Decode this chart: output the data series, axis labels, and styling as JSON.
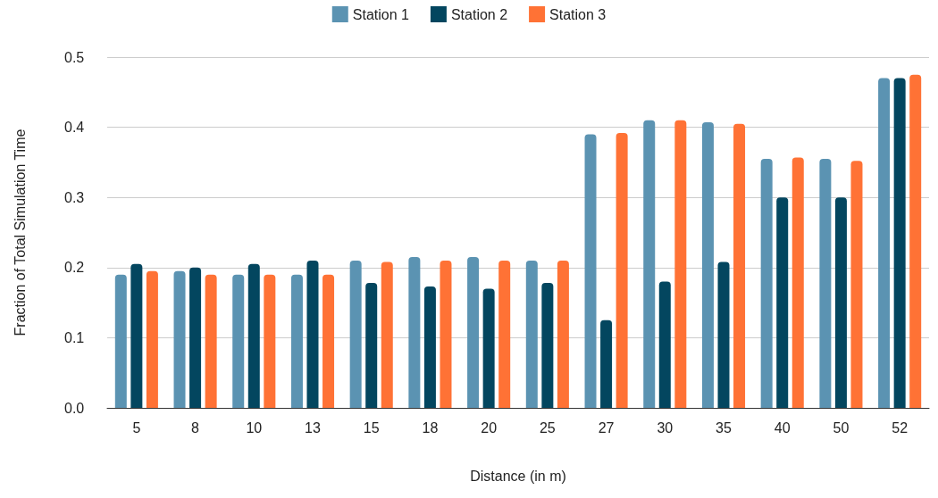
{
  "chart_data": {
    "type": "bar",
    "xlabel": "Distance (in m)",
    "ylabel": "Fraction of Total Simulation Time",
    "categories": [
      "5",
      "8",
      "10",
      "13",
      "15",
      "18",
      "20",
      "25",
      "27",
      "30",
      "35",
      "40",
      "50",
      "52"
    ],
    "series": [
      {
        "name": "Station 1",
        "color": "#5b93b2",
        "values": [
          0.19,
          0.195,
          0.19,
          0.19,
          0.21,
          0.215,
          0.215,
          0.21,
          0.39,
          0.41,
          0.407,
          0.355,
          0.355,
          0.47
        ]
      },
      {
        "name": "Station 2",
        "color": "#03465f",
        "values": [
          0.205,
          0.2,
          0.205,
          0.21,
          0.178,
          0.173,
          0.17,
          0.178,
          0.125,
          0.18,
          0.208,
          0.3,
          0.3,
          0.47
        ]
      },
      {
        "name": "Station 3",
        "color": "#ff7235",
        "values": [
          0.195,
          0.19,
          0.19,
          0.19,
          0.208,
          0.21,
          0.21,
          0.21,
          0.392,
          0.41,
          0.405,
          0.357,
          0.352,
          0.475
        ]
      }
    ],
    "ylim": [
      0,
      0.5
    ],
    "yticks": [
      {
        "value": 0,
        "label": "0.0"
      },
      0.1,
      0.2,
      0.3,
      0.4,
      0.5
    ],
    "grid": "y",
    "legend": "top"
  }
}
